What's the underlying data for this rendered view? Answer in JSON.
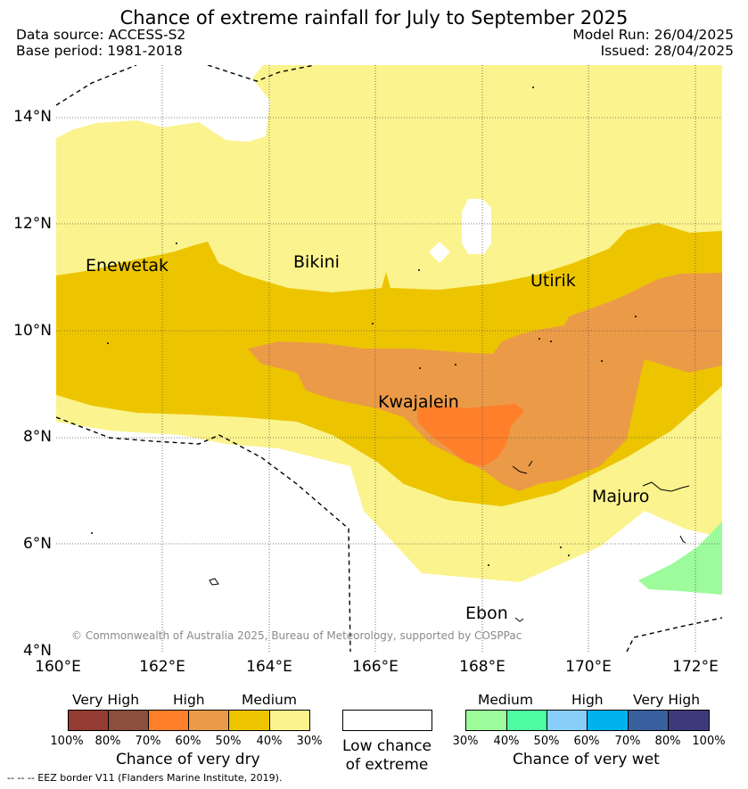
{
  "title": "Chance of extreme rainfall for July to September 2025",
  "data_source": "Data source: ACCESS-S2",
  "base_period": "Base period: 1981-2018",
  "model_run": "Model Run: 26/04/2025",
  "issued": "Issued: 28/04/2025",
  "lat_labels": [
    "14°N",
    "12°N",
    "10°N",
    "8°N",
    "6°N",
    "4°N"
  ],
  "lon_labels": [
    "160°E",
    "162°E",
    "164°E",
    "166°E",
    "168°E",
    "170°E",
    "172°E"
  ],
  "places": [
    "Enewetak",
    "Bikini",
    "Utirik",
    "Kwajalein",
    "Majuro",
    "Ebon"
  ],
  "copyright": "© Commonwealth of Australia 2025, Bureau of Meteorology, supported by COSPPac",
  "legend": {
    "dry": {
      "headers": [
        "Very High",
        "High",
        "Medium"
      ],
      "ticks": [
        "100%",
        "80%",
        "70%",
        "60%",
        "50%",
        "40%",
        "30%"
      ],
      "colors": [
        "#943b32",
        "#8b4f3e",
        "#ff7f2a",
        "#eb9a48",
        "#ecc500",
        "#fbf38d"
      ],
      "title": "Chance of very dry"
    },
    "neutral": {
      "line1": "Low chance",
      "line2": "of extreme"
    },
    "wet": {
      "headers": [
        "Medium",
        "High",
        "Very High"
      ],
      "ticks": [
        "30%",
        "40%",
        "50%",
        "60%",
        "70%",
        "80%",
        "100%"
      ],
      "colors": [
        "#9cfb9a",
        "#4dfba1",
        "#87cefa",
        "#00b2ee",
        "#3a5f9e",
        "#3d3a7a"
      ],
      "title": "Chance of very wet"
    }
  },
  "eez_note": "--  --  -- EEZ border V11 (Flanders Marine Institute, 2019)."
}
